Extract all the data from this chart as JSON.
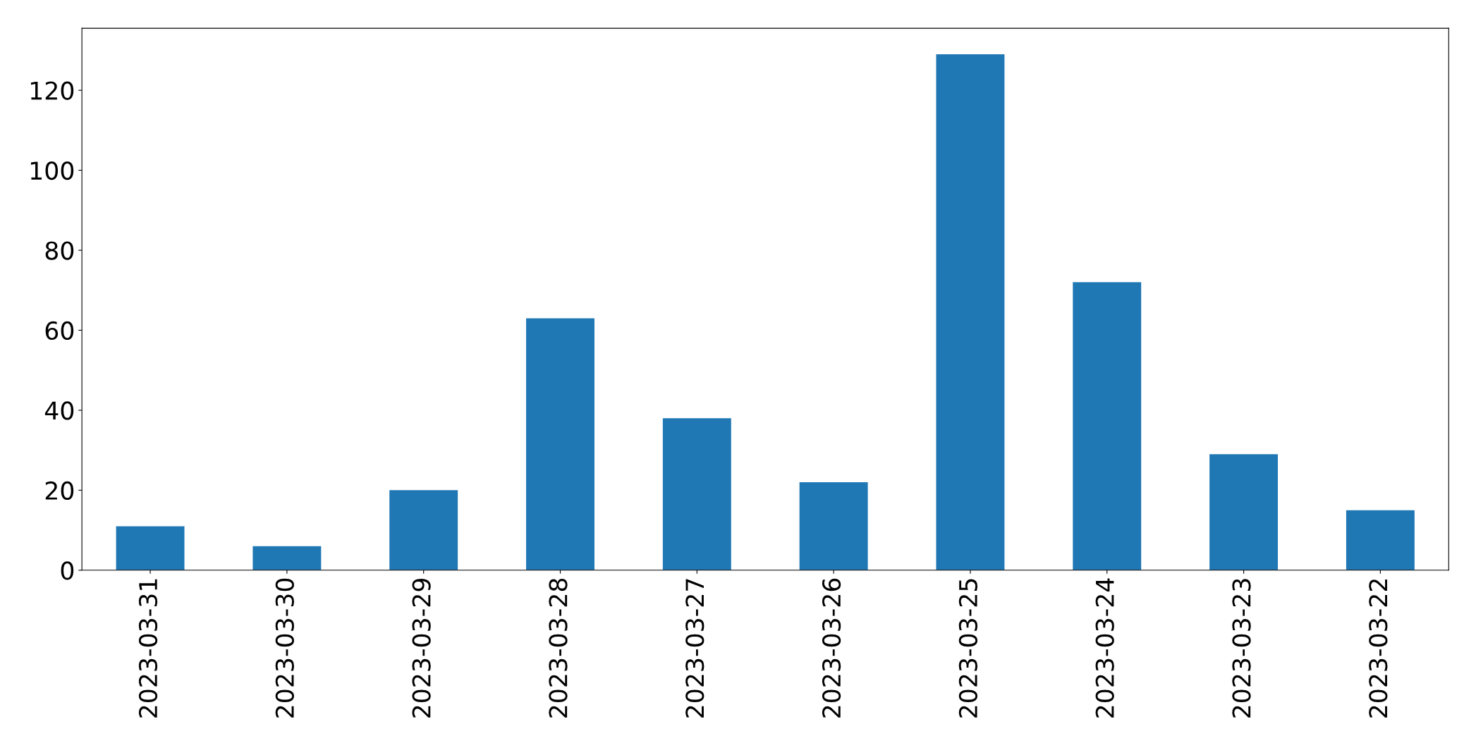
{
  "chart_data": {
    "type": "bar",
    "categories": [
      "2023-03-31",
      "2023-03-30",
      "2023-03-29",
      "2023-03-28",
      "2023-03-27",
      "2023-03-26",
      "2023-03-25",
      "2023-03-24",
      "2023-03-23",
      "2023-03-22"
    ],
    "values": [
      11,
      6,
      20,
      63,
      38,
      22,
      129,
      72,
      29,
      15
    ],
    "color": "#1f77b4",
    "ylim": [
      0,
      135.5
    ],
    "yticks": [
      0,
      20,
      40,
      60,
      80,
      100,
      120
    ],
    "grid": false
  }
}
